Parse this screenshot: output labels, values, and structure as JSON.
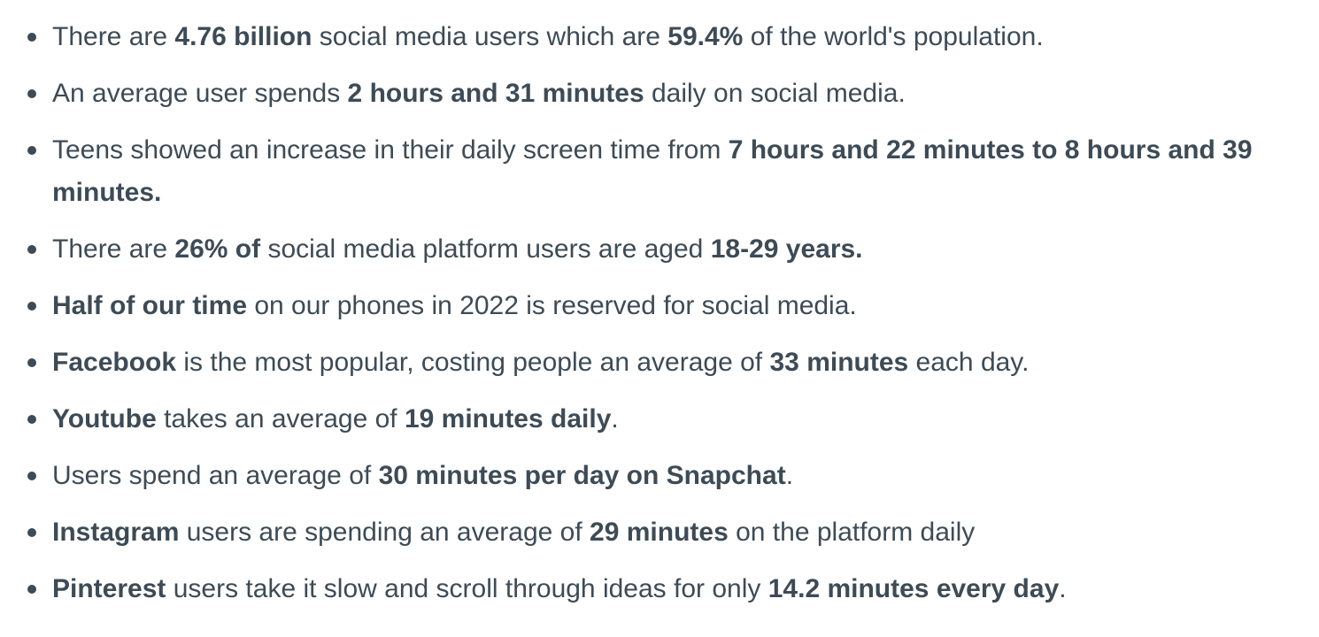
{
  "bullets": [
    {
      "segments": [
        {
          "text": "There are ",
          "bold": false
        },
        {
          "text": "4.76 billion",
          "bold": true
        },
        {
          "text": " social media users which are ",
          "bold": false
        },
        {
          "text": "59.4%",
          "bold": true
        },
        {
          "text": " of the world's population.",
          "bold": false
        }
      ]
    },
    {
      "segments": [
        {
          "text": "An average user spends ",
          "bold": false
        },
        {
          "text": "2 hours and 31 minutes",
          "bold": true
        },
        {
          "text": " daily on social media.",
          "bold": false
        }
      ]
    },
    {
      "segments": [
        {
          "text": "Teens showed an increase in their daily screen time from ",
          "bold": false
        },
        {
          "text": "7 hours and 22 minutes to 8 hours and 39 minutes.",
          "bold": true
        }
      ]
    },
    {
      "segments": [
        {
          "text": "There are ",
          "bold": false
        },
        {
          "text": "26% of",
          "bold": true
        },
        {
          "text": " social media platform users are aged ",
          "bold": false
        },
        {
          "text": "18-29 years.",
          "bold": true
        }
      ]
    },
    {
      "segments": [
        {
          "text": "Half of our time",
          "bold": true
        },
        {
          "text": " on our phones in 2022 is reserved for social media.",
          "bold": false
        }
      ]
    },
    {
      "segments": [
        {
          "text": "Facebook",
          "bold": true
        },
        {
          "text": " is the most popular, costing people an average of ",
          "bold": false
        },
        {
          "text": "33 minutes",
          "bold": true
        },
        {
          "text": " each day.",
          "bold": false
        }
      ]
    },
    {
      "segments": [
        {
          "text": "Youtube",
          "bold": true
        },
        {
          "text": " takes an average of ",
          "bold": false
        },
        {
          "text": "19 minutes daily",
          "bold": true
        },
        {
          "text": ".",
          "bold": false
        }
      ]
    },
    {
      "segments": [
        {
          "text": "Users spend an average of ",
          "bold": false
        },
        {
          "text": "30 minutes per day on Snapchat",
          "bold": true
        },
        {
          "text": ".",
          "bold": false
        }
      ]
    },
    {
      "segments": [
        {
          "text": "Instagram",
          "bold": true
        },
        {
          "text": " users are spending an average of ",
          "bold": false
        },
        {
          "text": "29 minutes",
          "bold": true
        },
        {
          "text": " on the platform daily",
          "bold": false
        }
      ]
    },
    {
      "segments": [
        {
          "text": "Pinterest",
          "bold": true
        },
        {
          "text": " users take it slow and scroll through ideas for only ",
          "bold": false
        },
        {
          "text": "14.2 minutes every day",
          "bold": true
        },
        {
          "text": ".",
          "bold": false
        }
      ]
    }
  ]
}
